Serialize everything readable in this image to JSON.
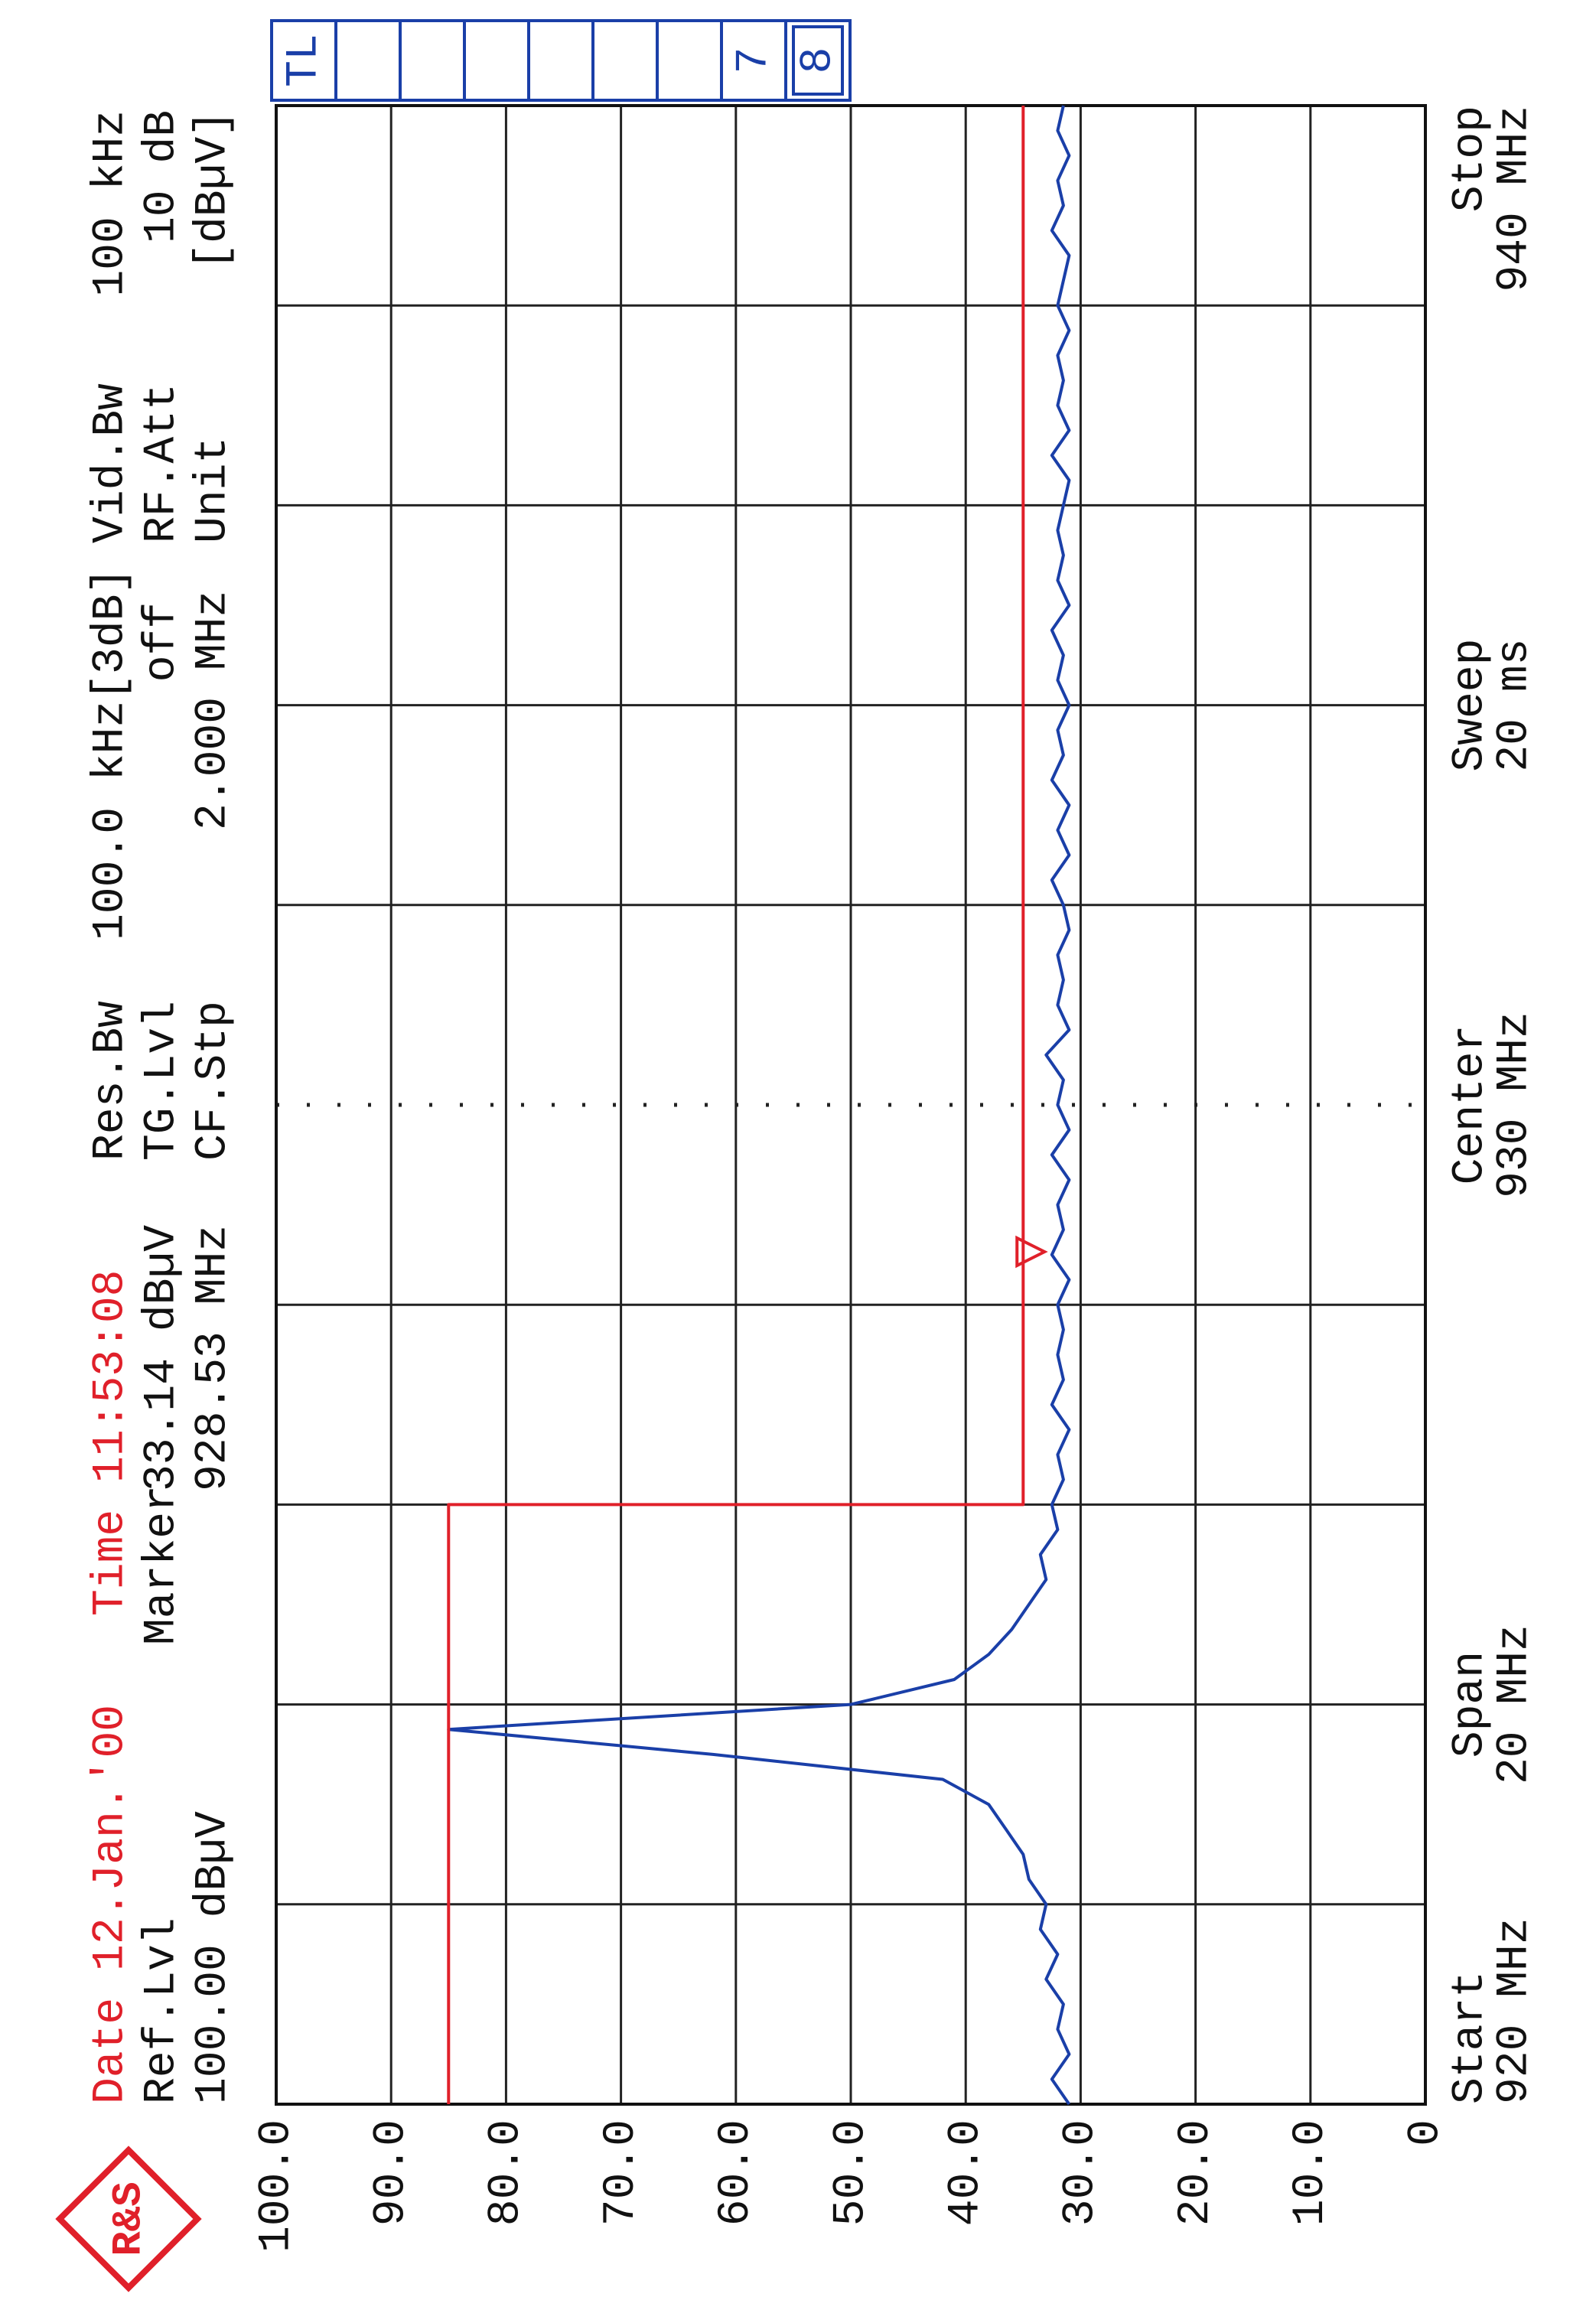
{
  "logo": "R&S",
  "status_panel": {
    "cells": [
      "TL",
      null,
      null,
      null,
      null,
      null,
      null,
      "7",
      "8"
    ]
  },
  "header": {
    "date": "Date 12.Jan.'00",
    "time": "Time 11:53:08",
    "ref_lvl_label": "Ref.Lvl",
    "ref_lvl": "100.00 dBµV",
    "marker_label": "Marker",
    "res_bw_label": "Res.Bw",
    "res_bw": "100.0 kHz[3dB]",
    "tg_lvl_label": "TG.Lvl",
    "tg_lvl": "off",
    "cf_stp_label": "CF.Stp",
    "cf_stp": "2.000 MHz",
    "vid_bw_label": "Vid.Bw",
    "vid_bw": "100 kHz",
    "rf_att_label": "RF.Att",
    "rf_att": "10 dB",
    "unit_label": "Unit",
    "unit": "[dBµV]"
  },
  "chart_data": {
    "type": "line",
    "xlim": [
      920,
      940
    ],
    "ylim": [
      0,
      100
    ],
    "xticks": [
      920,
      922,
      924,
      926,
      928,
      930,
      932,
      934,
      936,
      938,
      940
    ],
    "yticks": [
      {
        "value": 100,
        "label": "100.0"
      },
      {
        "value": 90,
        "label": "90.0"
      },
      {
        "value": 80,
        "label": "80.0"
      },
      {
        "value": 70,
        "label": "70.0"
      },
      {
        "value": 60,
        "label": "60.0"
      },
      {
        "value": 50,
        "label": "50.0"
      },
      {
        "value": 40,
        "label": "40.0"
      },
      {
        "value": 30,
        "label": "30.0"
      },
      {
        "value": 20,
        "label": "20.0"
      },
      {
        "value": 10,
        "label": "10.0"
      },
      0
    ],
    "grid": true,
    "axis_annotations": [
      {
        "x": 920,
        "lines": [
          "Start",
          "920 MHz"
        ]
      },
      {
        "x": 924,
        "lines": [
          "Span",
          "20 MHz"
        ]
      },
      {
        "x": 930,
        "lines": [
          "Center",
          "930 MHz"
        ]
      },
      {
        "x": 934,
        "lines": [
          "Sweep",
          "20 ms"
        ]
      },
      {
        "x": 940,
        "lines": [
          "Stop",
          "940 MHz"
        ]
      }
    ],
    "marker": {
      "x": 928.53,
      "y": 33.14,
      "label_x": "928.53 MHz",
      "label_y": "33.14 dBµV",
      "color": "#e0202a"
    },
    "series": [
      {
        "color": "#1a3fa8",
        "x": [
          920,
          920.25,
          920.5,
          920.75,
          921,
          921.25,
          921.5,
          921.75,
          922,
          922.25,
          922.5,
          922.75,
          923,
          923.25,
          923.5,
          923.75,
          924,
          924.25,
          924.5,
          924.75,
          925,
          925.25,
          925.5,
          925.75,
          926,
          926.25,
          926.5,
          926.75,
          927,
          927.25,
          927.5,
          927.75,
          928,
          928.25,
          928.5,
          928.75,
          929,
          929.25,
          929.5,
          929.75,
          930,
          930.25,
          930.5,
          930.75,
          931,
          931.25,
          931.5,
          931.75,
          932,
          932.25,
          932.5,
          932.75,
          933,
          933.25,
          933.5,
          933.75,
          934,
          934.25,
          934.5,
          934.75,
          935,
          935.25,
          935.5,
          935.75,
          936,
          936.25,
          936.5,
          936.75,
          937,
          937.25,
          937.5,
          937.75,
          938,
          938.25,
          938.5,
          938.75,
          939,
          939.25,
          939.5,
          939.75,
          940
        ],
        "values": [
          31,
          32.5,
          31,
          32,
          31.5,
          33,
          32,
          33.5,
          33,
          34.5,
          35,
          36.5,
          38,
          42,
          62,
          85,
          50,
          41,
          38,
          36,
          34.5,
          33,
          33.5,
          32,
          32.5,
          31.5,
          32,
          31,
          32.5,
          31.5,
          32,
          31.5,
          32,
          31,
          32.5,
          31.5,
          32,
          31,
          32.5,
          31,
          32,
          31.5,
          33,
          31,
          32,
          31.5,
          32,
          31,
          31.5,
          32.5,
          31,
          32,
          31,
          32.5,
          31.5,
          32,
          31,
          32,
          31.5,
          32.5,
          31,
          32,
          31.5,
          32,
          31.5,
          31,
          32.5,
          31,
          32,
          31.5,
          32,
          31,
          32,
          31.5,
          31,
          32.5,
          31.5,
          32,
          31,
          32,
          31.5
        ]
      },
      {
        "color": "#e0202a",
        "x": [
          920,
          926,
          926,
          940
        ],
        "values": [
          85,
          85,
          35,
          35
        ]
      }
    ]
  }
}
